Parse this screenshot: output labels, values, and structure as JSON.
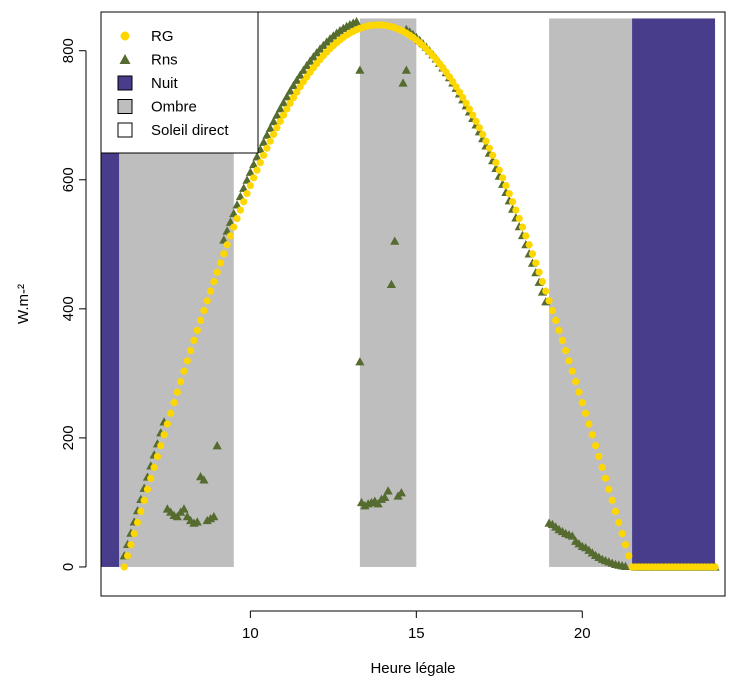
{
  "chart_data": {
    "type": "scatter",
    "title": "",
    "xlabel": "Heure légale",
    "ylabel": "W.m-²",
    "xlim": [
      5.5,
      24.3
    ],
    "ylim": [
      -45,
      860
    ],
    "x_ticks": [
      10,
      15,
      20
    ],
    "y_ticks": [
      0,
      200,
      400,
      600,
      800
    ],
    "grid": false,
    "legend_position": "top-left",
    "colors": {
      "nuit": "#483d8b",
      "ombre": "#bebebe",
      "soleil_direct": "#ffffff",
      "rg": "#ffd700",
      "rns": "#556b2f"
    },
    "background_bands": [
      {
        "kind": "Nuit",
        "x0": 5.5,
        "x1": 6.05
      },
      {
        "kind": "Ombre",
        "x0": 6.05,
        "x1": 9.5
      },
      {
        "kind": "Ombre",
        "x0": 13.3,
        "x1": 15.0
      },
      {
        "kind": "Ombre",
        "x0": 19.0,
        "x1": 21.5
      },
      {
        "kind": "Nuit",
        "x0": 21.5,
        "x1": 24.0
      }
    ],
    "legend": [
      {
        "label": "RG",
        "symbol": "circle",
        "color": "#ffd700"
      },
      {
        "label": "Rns",
        "symbol": "triangle",
        "color": "#556b2f"
      },
      {
        "label": "Nuit",
        "symbol": "square",
        "color": "#483d8b"
      },
      {
        "label": "Ombre",
        "symbol": "square",
        "color": "#bebebe"
      },
      {
        "label": "Soleil direct",
        "symbol": "square",
        "color": "#ffffff"
      }
    ],
    "series": [
      {
        "name": "RG",
        "marker": "circle",
        "curve": "sine",
        "x_start": 6.2,
        "x_end": 21.5,
        "step": 0.1,
        "peak": 840,
        "sunrise": 6.2,
        "sunset": 21.5,
        "night_values": {
          "x_start": 21.6,
          "x_end": 24.0,
          "step": 0.1,
          "y": 0
        }
      },
      {
        "name": "Rns",
        "marker": "triangle",
        "curve": "sine",
        "x_start": 6.2,
        "x_end": 21.5,
        "step": 0.1,
        "peak": 850,
        "sunrise": 6.1,
        "sunset": 21.35,
        "night_values": {
          "x_start": 21.6,
          "x_end": 24.0,
          "step": 0.1,
          "y": 0
        },
        "shade_values": [
          {
            "x": 7.5,
            "y": 90
          },
          {
            "x": 7.6,
            "y": 85
          },
          {
            "x": 7.7,
            "y": 80
          },
          {
            "x": 7.8,
            "y": 78
          },
          {
            "x": 7.9,
            "y": 85
          },
          {
            "x": 8.0,
            "y": 90
          },
          {
            "x": 8.1,
            "y": 78
          },
          {
            "x": 8.2,
            "y": 72
          },
          {
            "x": 8.3,
            "y": 68
          },
          {
            "x": 8.4,
            "y": 70
          },
          {
            "x": 8.5,
            "y": 140
          },
          {
            "x": 8.6,
            "y": 135
          },
          {
            "x": 8.7,
            "y": 72
          },
          {
            "x": 8.8,
            "y": 75
          },
          {
            "x": 8.9,
            "y": 78
          },
          {
            "x": 9.0,
            "y": 188
          },
          {
            "x": 13.3,
            "y": 318
          },
          {
            "x": 13.35,
            "y": 100
          },
          {
            "x": 13.45,
            "y": 95
          },
          {
            "x": 13.55,
            "y": 98
          },
          {
            "x": 13.65,
            "y": 100
          },
          {
            "x": 13.75,
            "y": 102
          },
          {
            "x": 13.85,
            "y": 98
          },
          {
            "x": 13.95,
            "y": 105
          },
          {
            "x": 14.05,
            "y": 108
          },
          {
            "x": 14.15,
            "y": 118
          },
          {
            "x": 14.25,
            "y": 438
          },
          {
            "x": 14.35,
            "y": 505
          },
          {
            "x": 14.45,
            "y": 110
          },
          {
            "x": 14.55,
            "y": 115
          },
          {
            "x": 13.3,
            "y": 770
          },
          {
            "x": 14.6,
            "y": 750
          },
          {
            "x": 14.7,
            "y": 770
          },
          {
            "x": 19.0,
            "y": 68
          },
          {
            "x": 19.1,
            "y": 66
          },
          {
            "x": 19.2,
            "y": 62
          },
          {
            "x": 19.3,
            "y": 58
          },
          {
            "x": 19.4,
            "y": 55
          },
          {
            "x": 19.5,
            "y": 52
          },
          {
            "x": 19.6,
            "y": 50
          },
          {
            "x": 19.7,
            "y": 48
          },
          {
            "x": 19.8,
            "y": 40
          },
          {
            "x": 19.9,
            "y": 36
          },
          {
            "x": 20.0,
            "y": 32
          },
          {
            "x": 20.1,
            "y": 30
          },
          {
            "x": 20.2,
            "y": 26
          },
          {
            "x": 20.3,
            "y": 22
          },
          {
            "x": 20.4,
            "y": 18
          },
          {
            "x": 20.5,
            "y": 15
          },
          {
            "x": 20.6,
            "y": 12
          },
          {
            "x": 20.7,
            "y": 10
          },
          {
            "x": 20.8,
            "y": 8
          },
          {
            "x": 20.9,
            "y": 6
          },
          {
            "x": 21.0,
            "y": 4
          },
          {
            "x": 21.1,
            "y": 3
          },
          {
            "x": 21.2,
            "y": 2
          },
          {
            "x": 21.3,
            "y": 1
          }
        ]
      }
    ]
  }
}
